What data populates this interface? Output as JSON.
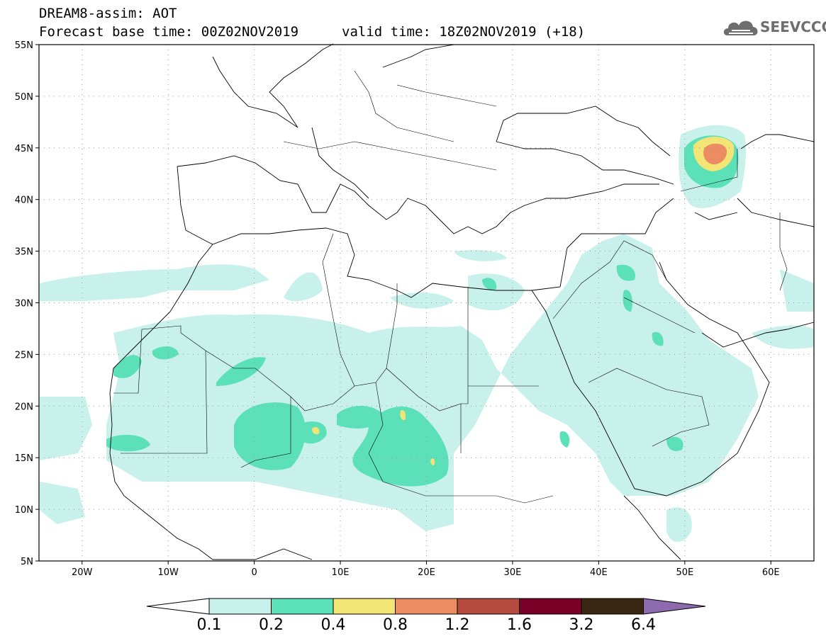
{
  "title": {
    "line1": "DREAM8-assim: AOT",
    "line2": "Forecast base time: 00Z02NOV2019",
    "line3": "valid time: 18Z02NOV2019 (+18)"
  },
  "logo": {
    "text": "SEEVCCC",
    "icon": "cloud-icon"
  },
  "map": {
    "lon_range": [
      -25,
      65
    ],
    "lat_range": [
      5,
      55
    ],
    "lat_ticks": [
      "55N",
      "50N",
      "45N",
      "40N",
      "35N",
      "30N",
      "25N",
      "20N",
      "15N",
      "10N",
      "5N"
    ],
    "lon_ticks": [
      "20W",
      "10W",
      "0",
      "10E",
      "20E",
      "30E",
      "40E",
      "50E",
      "60E"
    ],
    "grid": "dotted"
  },
  "colorbar": {
    "labels": [
      "0.1",
      "0.2",
      "0.4",
      "0.8",
      "1.2",
      "1.6",
      "3.2",
      "6.4"
    ],
    "colors": [
      "#ffffff",
      "#c8f1ec",
      "#5ce0b8",
      "#f2e576",
      "#eb8c63",
      "#b44b3c",
      "#7a0027",
      "#3a2812",
      "#8d6ab0"
    ]
  }
}
